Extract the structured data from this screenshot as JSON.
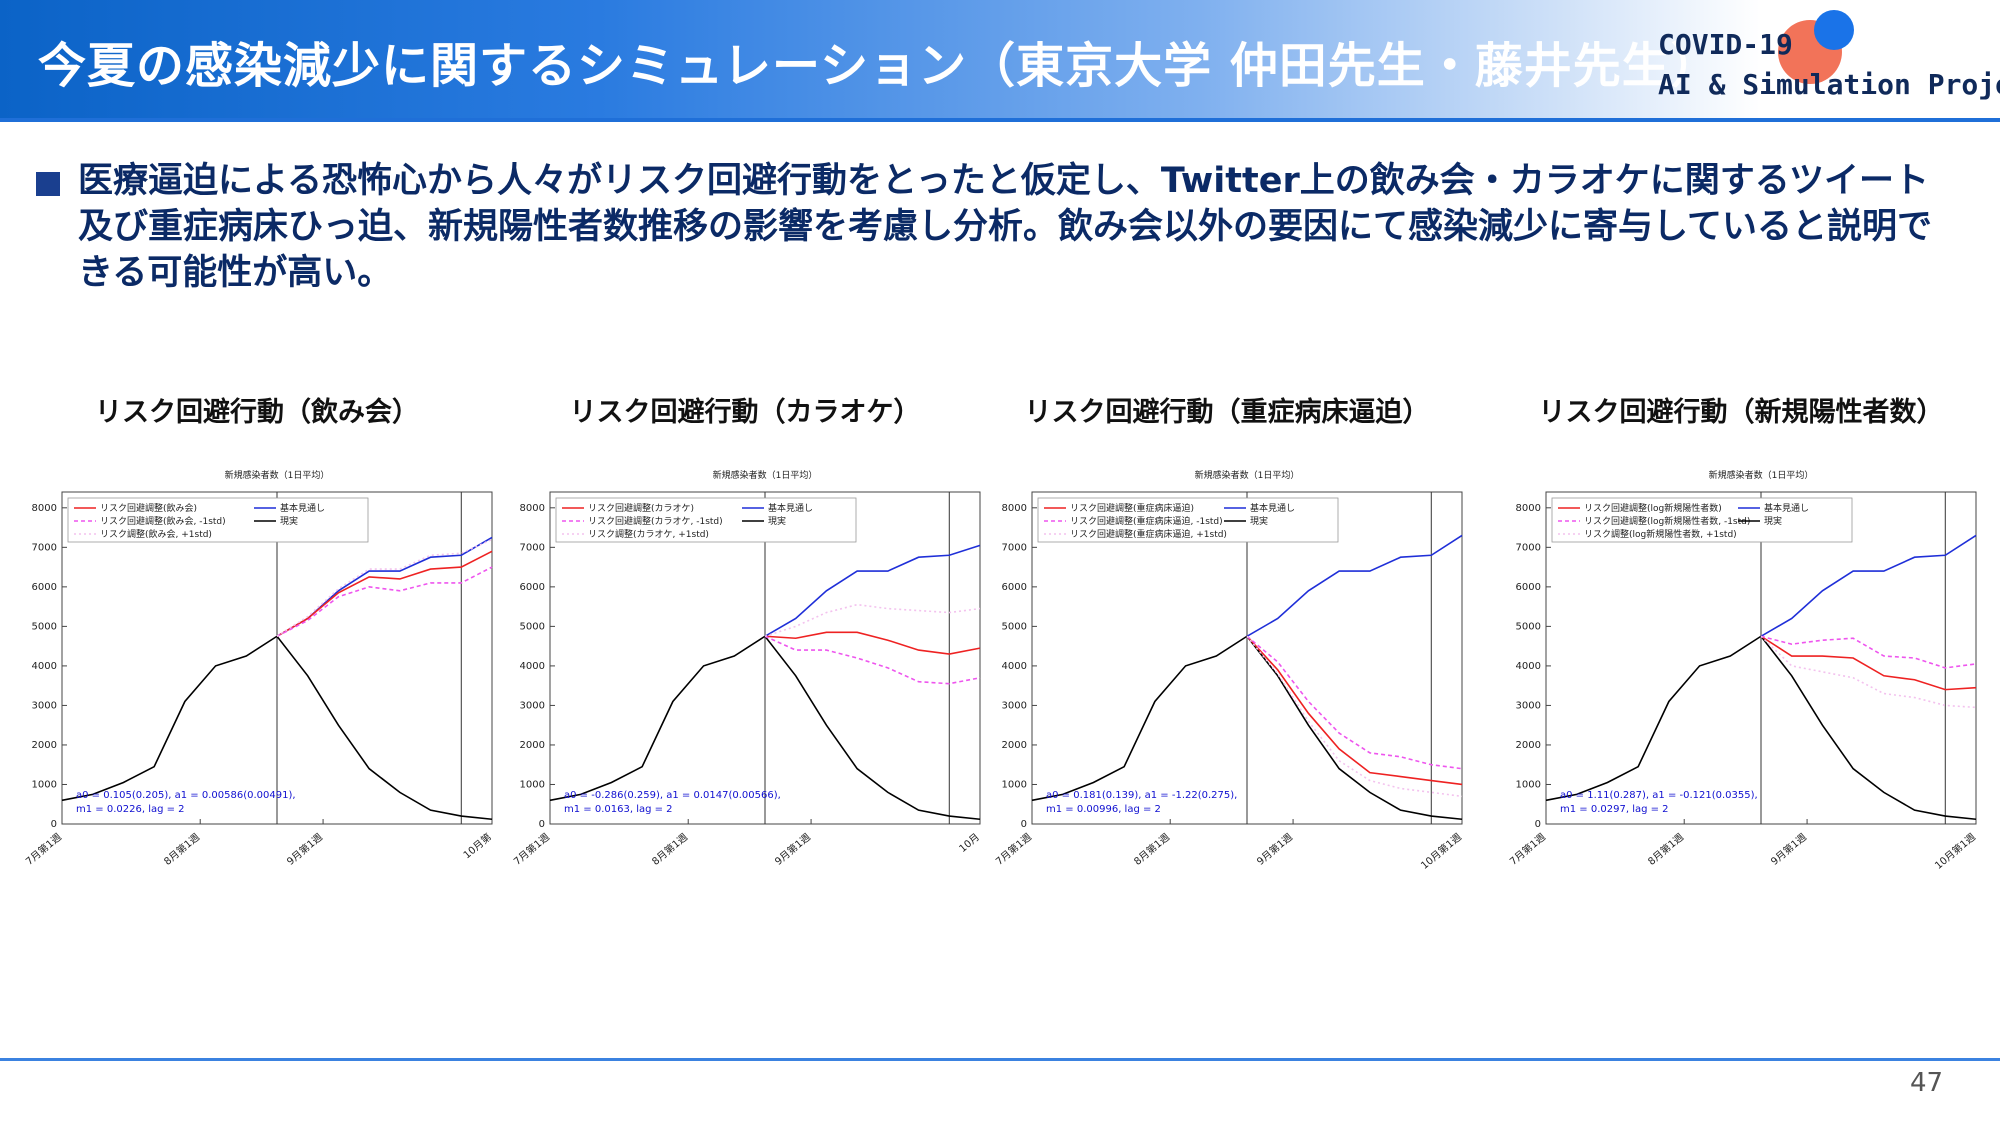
{
  "header": {
    "title": "今夏の感染減少に関するシミュレーション（東京大学 仲田先生・藤井先生）",
    "brand_line1": "COVID-19",
    "brand_line2": "AI & Simulation Project"
  },
  "bullet": {
    "text": "医療逼迫による恐怖心から人々がリスク回避行動をとったと仮定し、Twitter上の飲み会・カラオケに関するツイート及び重症病床ひっ迫、新規陽性者数推移の影響を考慮し分析。飲み会以外の要因にて感染減少に寄与していると説明できる可能性が高い。"
  },
  "page_number": "47",
  "chart_data": [
    {
      "type": "line",
      "heading": "リスク回避行動（飲み会）",
      "title": "新規感染者数（1日平均）",
      "x_tick_labels": [
        "7月第1週",
        "8月第1週",
        "9月第1週",
        "10月第"
      ],
      "y_ticks": [
        0,
        1000,
        2000,
        3000,
        4000,
        5000,
        6000,
        7000,
        8000
      ],
      "ylim": [
        0,
        8400
      ],
      "xlim": [
        0,
        14
      ],
      "annotation_line1": "a0 = 0.105(0.205), a1 = 0.00586(0.00491),",
      "annotation_line2": "m1 = 0.0226, lag = 2",
      "legend": [
        "リスク回避調整(飲み会)",
        "リスク回避調整(飲み会, -1std)",
        "リスク調整(飲み会, +1std)",
        "基本見通し",
        "現実"
      ],
      "series": [
        {
          "name": "現実",
          "color": "#000000",
          "x": [
            0,
            1,
            2,
            3,
            4,
            5,
            6,
            7,
            8,
            9,
            10,
            11,
            12,
            13,
            14
          ],
          "y": [
            600,
            750,
            1050,
            1450,
            3100,
            4000,
            4250,
            4750,
            3750,
            2500,
            1400,
            800,
            350,
            200,
            120
          ]
        },
        {
          "name": "基本見通し",
          "color": "#1f2fd8",
          "x": [
            7,
            8,
            9,
            10,
            11,
            12,
            13,
            14
          ],
          "y": [
            4750,
            5200,
            5900,
            6400,
            6400,
            6750,
            6800,
            7250
          ]
        },
        {
          "name": "リスク回避調整(飲み会)",
          "color": "#ee2222",
          "x": [
            7,
            8,
            9,
            10,
            11,
            12,
            13,
            14
          ],
          "y": [
            4750,
            5200,
            5850,
            6250,
            6200,
            6450,
            6500,
            6900
          ]
        },
        {
          "name": "リスク回避調整(飲み会, -1std)",
          "color": "#ee55ee",
          "dash": "4 3",
          "x": [
            7,
            8,
            9,
            10,
            11,
            12,
            13,
            14
          ],
          "y": [
            4750,
            5150,
            5750,
            6000,
            5900,
            6100,
            6100,
            6500
          ]
        },
        {
          "name": "リスク調整(飲み会, +1std)",
          "color": "#f3c2ee",
          "dash": "2 3",
          "x": [
            7,
            8,
            9,
            10,
            11,
            12,
            13,
            14
          ],
          "y": [
            4750,
            5250,
            5950,
            6450,
            6450,
            6800,
            6850,
            7200
          ]
        }
      ]
    },
    {
      "type": "line",
      "heading": "リスク回避行動（カラオケ）",
      "title": "新規感染者数（1日平均）",
      "x_tick_labels": [
        "7月第1週",
        "8月第1週",
        "9月第1週",
        "10月"
      ],
      "y_ticks": [
        0,
        1000,
        2000,
        3000,
        4000,
        5000,
        6000,
        7000,
        8000
      ],
      "ylim": [
        0,
        8400
      ],
      "xlim": [
        0,
        14
      ],
      "annotation_line1": "a0 = -0.286(0.259), a1 = 0.0147(0.00566),",
      "annotation_line2": "m1 = 0.0163, lag = 2",
      "legend": [
        "リスク回避調整(カラオケ)",
        "リスク回避調整(カラオケ, -1std)",
        "リスク調整(カラオケ, +1std)",
        "基本見通し",
        "現実"
      ],
      "series": [
        {
          "name": "現実",
          "color": "#000000",
          "x": [
            0,
            1,
            2,
            3,
            4,
            5,
            6,
            7,
            8,
            9,
            10,
            11,
            12,
            13,
            14
          ],
          "y": [
            600,
            750,
            1050,
            1450,
            3100,
            4000,
            4250,
            4750,
            3750,
            2500,
            1400,
            800,
            350,
            200,
            120
          ]
        },
        {
          "name": "基本見通し",
          "color": "#1f2fd8",
          "x": [
            7,
            8,
            9,
            10,
            11,
            12,
            13,
            14
          ],
          "y": [
            4750,
            5200,
            5900,
            6400,
            6400,
            6750,
            6800,
            7050
          ]
        },
        {
          "name": "リスク回避調整(カラオケ)",
          "color": "#ee2222",
          "x": [
            7,
            8,
            9,
            10,
            11,
            12,
            13,
            14
          ],
          "y": [
            4750,
            4700,
            4850,
            4850,
            4650,
            4400,
            4300,
            4450
          ]
        },
        {
          "name": "リスク回避調整(カラオケ, -1std)",
          "color": "#ee55ee",
          "dash": "4 3",
          "x": [
            7,
            8,
            9,
            10,
            11,
            12,
            13,
            14
          ],
          "y": [
            4750,
            4400,
            4400,
            4200,
            3950,
            3600,
            3550,
            3700
          ]
        },
        {
          "name": "リスク調整(カラオケ, +1std)",
          "color": "#f3c2ee",
          "dash": "2 3",
          "x": [
            7,
            8,
            9,
            10,
            11,
            12,
            13,
            14
          ],
          "y": [
            4750,
            5000,
            5350,
            5550,
            5450,
            5400,
            5350,
            5450
          ]
        }
      ]
    },
    {
      "type": "line",
      "heading": "リスク回避行動（重症病床逼迫）",
      "title": "新規感染者数（1日平均）",
      "x_tick_labels": [
        "7月第1週",
        "8月第1週",
        "9月第1週",
        "10月第1週"
      ],
      "y_ticks": [
        0,
        1000,
        2000,
        3000,
        4000,
        5000,
        6000,
        7000,
        8000
      ],
      "ylim": [
        0,
        8400
      ],
      "xlim": [
        0,
        14
      ],
      "annotation_line1": "a0 = 0.181(0.139), a1 = -1.22(0.275),",
      "annotation_line2": "m1 = 0.00996, lag = 2",
      "legend": [
        "リスク回避調整(重症病床逼迫)",
        "リスク回避調整(重症病床逼迫, -1std)",
        "リスク回避調整(重症病床逼迫, +1std)",
        "基本見通し",
        "現実"
      ],
      "series": [
        {
          "name": "現実",
          "color": "#000000",
          "x": [
            0,
            1,
            2,
            3,
            4,
            5,
            6,
            7,
            8,
            9,
            10,
            11,
            12,
            13,
            14
          ],
          "y": [
            600,
            750,
            1050,
            1450,
            3100,
            4000,
            4250,
            4750,
            3750,
            2500,
            1400,
            800,
            350,
            200,
            120
          ]
        },
        {
          "name": "基本見通し",
          "color": "#1f2fd8",
          "x": [
            7,
            8,
            9,
            10,
            11,
            12,
            13,
            14
          ],
          "y": [
            4750,
            5200,
            5900,
            6400,
            6400,
            6750,
            6800,
            7300
          ]
        },
        {
          "name": "リスク回避調整(重症病床逼迫)",
          "color": "#ee2222",
          "x": [
            7,
            8,
            9,
            10,
            11,
            12,
            13,
            14
          ],
          "y": [
            4750,
            3900,
            2800,
            1900,
            1300,
            1200,
            1100,
            1000
          ]
        },
        {
          "name": "リスク回避調整(重症病床逼迫, -1std)",
          "color": "#ee55ee",
          "dash": "4 3",
          "x": [
            7,
            8,
            9,
            10,
            11,
            12,
            13,
            14
          ],
          "y": [
            4750,
            4100,
            3100,
            2300,
            1800,
            1700,
            1500,
            1400
          ]
        },
        {
          "name": "リスク回避調整(重症病床逼迫, +1std)",
          "color": "#f3c2ee",
          "dash": "2 3",
          "x": [
            7,
            8,
            9,
            10,
            11,
            12,
            13,
            14
          ],
          "y": [
            4750,
            3800,
            2600,
            1600,
            1100,
            900,
            800,
            700
          ]
        }
      ]
    },
    {
      "type": "line",
      "heading": "リスク回避行動（新規陽性者数）",
      "title": "新規感染者数（1日平均）",
      "x_tick_labels": [
        "7月第1週",
        "8月第1週",
        "9月第1週",
        "10月第1週"
      ],
      "y_ticks": [
        0,
        1000,
        2000,
        3000,
        4000,
        5000,
        6000,
        7000,
        8000
      ],
      "ylim": [
        0,
        8400
      ],
      "xlim": [
        0,
        14
      ],
      "annotation_line1": "a0 = 1.11(0.287), a1 = -0.121(0.0355),",
      "annotation_line2": "m1 = 0.0297, lag = 2",
      "legend": [
        "リスク回避調整(log新規陽性者数)",
        "リスク回避調整(log新規陽性者数, -1std)",
        "リスク調整(log新規陽性者数, +1std)",
        "基本見通し",
        "現実"
      ],
      "series": [
        {
          "name": "現実",
          "color": "#000000",
          "x": [
            0,
            1,
            2,
            3,
            4,
            5,
            6,
            7,
            8,
            9,
            10,
            11,
            12,
            13,
            14
          ],
          "y": [
            600,
            750,
            1050,
            1450,
            3100,
            4000,
            4250,
            4750,
            3750,
            2500,
            1400,
            800,
            350,
            200,
            120
          ]
        },
        {
          "name": "基本見通し",
          "color": "#1f2fd8",
          "x": [
            7,
            8,
            9,
            10,
            11,
            12,
            13,
            14
          ],
          "y": [
            4750,
            5200,
            5900,
            6400,
            6400,
            6750,
            6800,
            7300
          ]
        },
        {
          "name": "リスク回避調整(log新規陽性者数)",
          "color": "#ee2222",
          "x": [
            7,
            8,
            9,
            10,
            11,
            12,
            13,
            14
          ],
          "y": [
            4750,
            4250,
            4250,
            4200,
            3750,
            3650,
            3400,
            3450
          ]
        },
        {
          "name": "リスク回避調整(log新規陽性者数, -1std)",
          "color": "#ee55ee",
          "dash": "4 3",
          "x": [
            7,
            8,
            9,
            10,
            11,
            12,
            13,
            14
          ],
          "y": [
            4750,
            4550,
            4650,
            4700,
            4250,
            4200,
            3950,
            4050
          ]
        },
        {
          "name": "リスク調整(log新規陽性者数, +1std)",
          "color": "#f3c2ee",
          "dash": "2 3",
          "x": [
            7,
            8,
            9,
            10,
            11,
            12,
            13,
            14
          ],
          "y": [
            4750,
            4000,
            3850,
            3700,
            3300,
            3200,
            3000,
            2950
          ]
        }
      ]
    }
  ]
}
